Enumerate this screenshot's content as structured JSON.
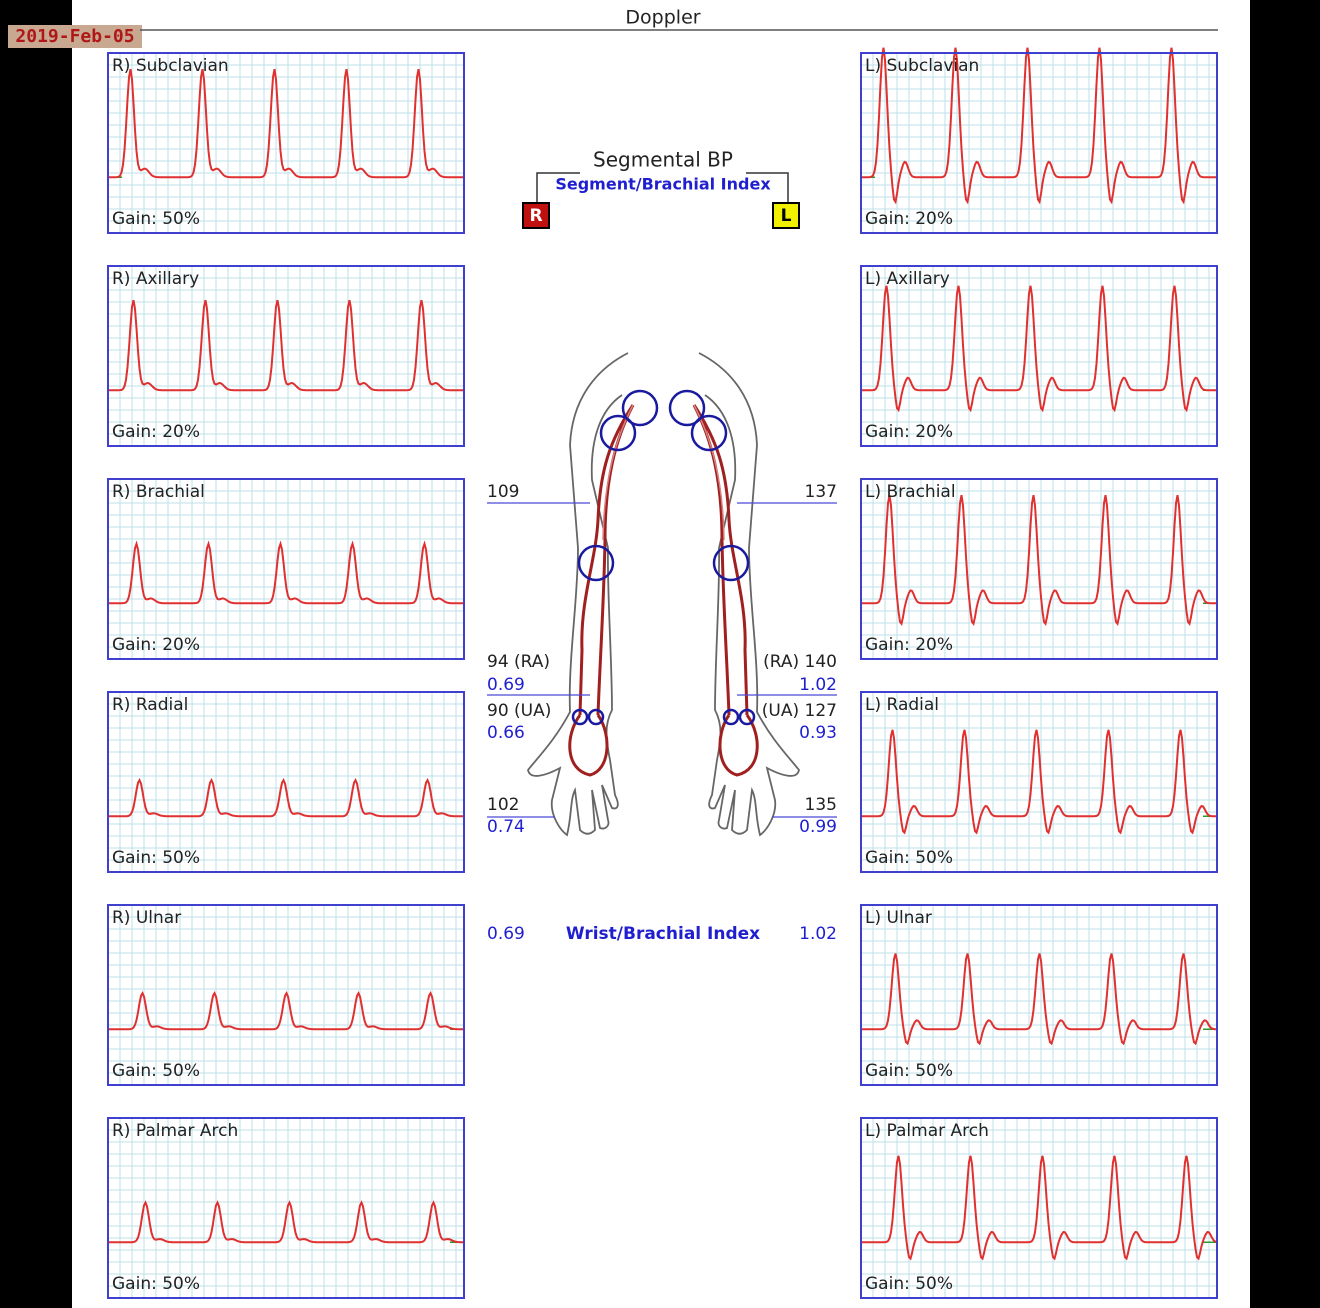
{
  "header": {
    "date": "2019-Feb-05",
    "title": "Doppler"
  },
  "panels": {
    "left": [
      {
        "label": "R) Subclavian",
        "gain": "Gain: 50%"
      },
      {
        "label": "R) Axillary",
        "gain": "Gain: 20%"
      },
      {
        "label": "R) Brachial",
        "gain": "Gain: 20%"
      },
      {
        "label": "R) Radial",
        "gain": "Gain: 50%"
      },
      {
        "label": "R) Ulnar",
        "gain": "Gain: 50%"
      },
      {
        "label": "R) Palmar Arch",
        "gain": "Gain: 50%"
      }
    ],
    "right": [
      {
        "label": "L) Subclavian",
        "gain": "Gain: 20%"
      },
      {
        "label": "L) Axillary",
        "gain": "Gain: 20%"
      },
      {
        "label": "L) Brachial",
        "gain": "Gain: 20%"
      },
      {
        "label": "L) Radial",
        "gain": "Gain: 50%"
      },
      {
        "label": "L) Ulnar",
        "gain": "Gain: 50%"
      },
      {
        "label": "L) Palmar Arch",
        "gain": "Gain: 50%"
      }
    ]
  },
  "segmental": {
    "title": "Segmental BP",
    "subtitle": "Segment/Brachial Index",
    "right_marker": "R",
    "left_marker": "L"
  },
  "measurements": {
    "right": {
      "brachial": "109",
      "radial": "94 (RA)",
      "radial_index": "0.69",
      "ulnar": "90 (UA)",
      "ulnar_index": "0.66",
      "palmar": "102",
      "palmar_index": "0.74",
      "wrist_index": "0.69"
    },
    "left": {
      "brachial": "137",
      "radial": "(RA) 140",
      "radial_index": "1.02",
      "ulnar": "(UA) 127",
      "ulnar_index": "0.93",
      "palmar": "135",
      "palmar_index": "0.99",
      "wrist_index": "1.02"
    },
    "wrist_label": "Wrist/Brachial Index"
  }
}
